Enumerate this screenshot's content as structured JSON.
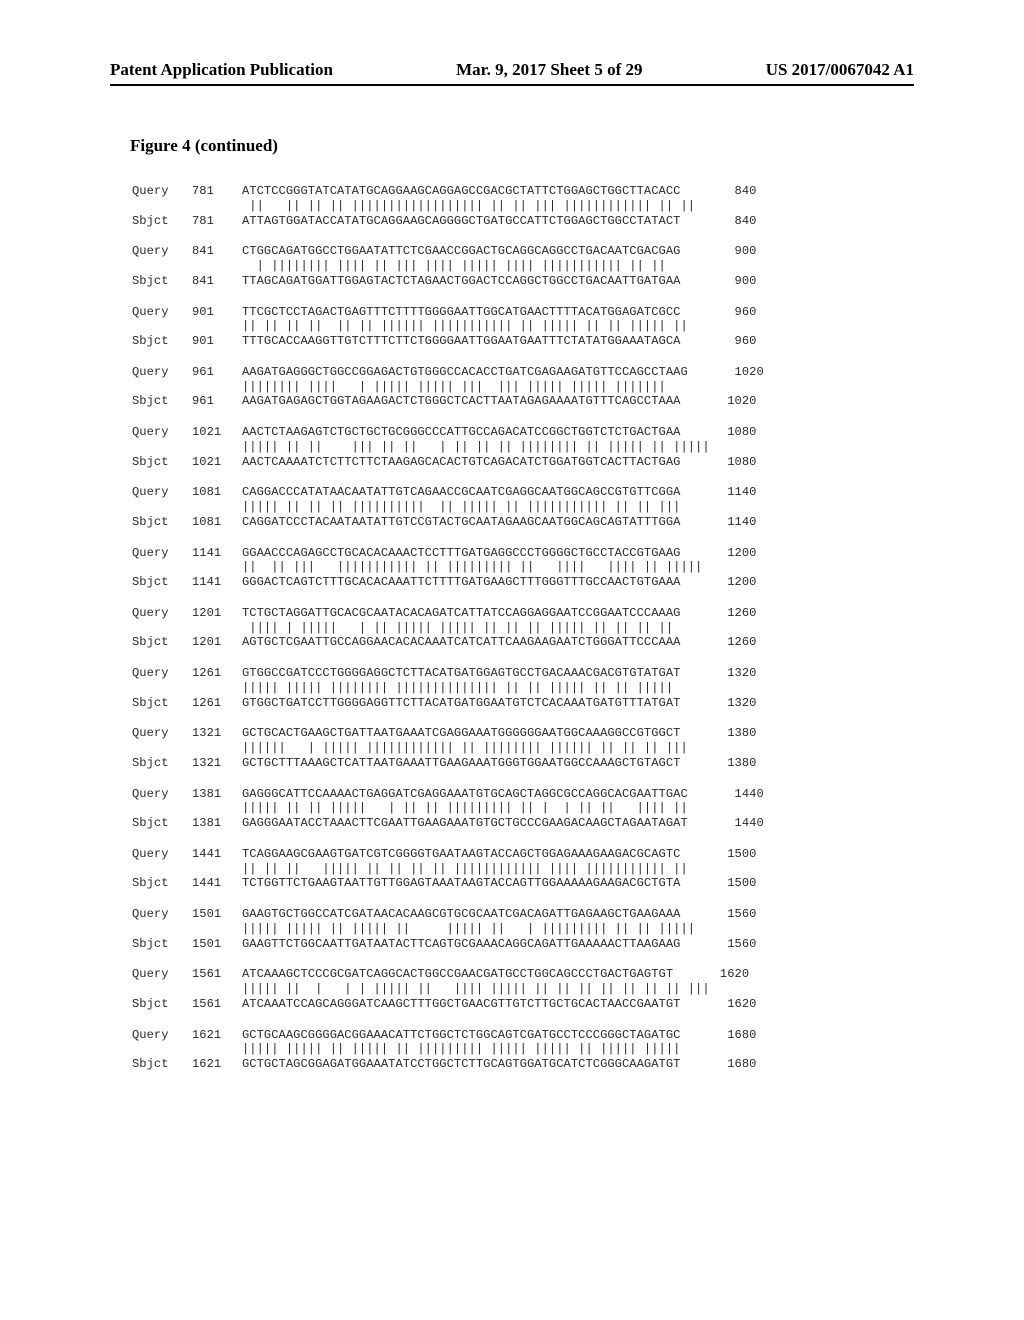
{
  "header": {
    "left": "Patent Application Publication",
    "center": "Mar. 9, 2017  Sheet 5 of 29",
    "right": "US 2017/0067042 A1"
  },
  "figure": {
    "title": "Figure 4 (continued)"
  },
  "alignment": {
    "font": "Courier New",
    "font_size_pt": 12,
    "seq_label_q": "Query",
    "seq_label_s": "Sbjct",
    "background_color": "#ffffff",
    "text_color": "#2a2a2a",
    "blocks": [
      {
        "start": 781,
        "end": 840,
        "query": "ATCTCCGGGTATCATATGCAGGAAGCAGGAGCCGACGCTATTCTGGAGCTGGCTTACACC",
        "match": " ||   || || || |||||||||||||||||| || || ||| |||||||||||| || ||",
        "sbjct": "ATTAGTGGATACCATATGCAGGAAGCAGGGGCTGATGCCATTCTGGAGCTGGCCTATACT"
      },
      {
        "start": 841,
        "end": 900,
        "query": "CTGGCAGATGGCCTGGAATATTCTCGAACCGGACTGCAGGCAGGCCTGACAATCGACGAG",
        "match": "  | |||||||| |||| || ||| |||| ||||| |||| ||||||||||| || ||   ",
        "sbjct": "TTAGCAGATGGATTGGAGTACTCTAGAACTGGACTCCAGGCTGGCCTGACAATTGATGAA"
      },
      {
        "start": 901,
        "end": 960,
        "query": "TTCGCTCCTAGACTGAGTTTCTTTTGGGGAATTGGCATGAACTTTTACATGGAGATCGCC",
        "match": "|| || || ||  || || |||||| ||||||||||| || ||||| || || ||||| ||  ",
        "sbjct": "TTTGCACCAAGGTTGTCTTTCTTCTGGGGAATTGGAATGAATTTCTATATGGAAATAGCA"
      },
      {
        "start": 961,
        "end": 1020,
        "query": "AAGATGAGGGCTGGCCGGAGACTGTGGGCCACACCTGATCGAGAAGATGTTCCAGCCTAAG",
        "match": "|||||||| ||||   | ||||| ||||| |||  ||| ||||| ||||| |||||||    ",
        "sbjct": "AAGATGAGAGCTGGTAGAAGACTCTGGGCTCACTTAATAGAGAAAATGTTTCAGCCTAAA"
      },
      {
        "start": 1021,
        "end": 1080,
        "query": "AACTCTAAGAGTCTGCTGCTGCGGGCCCATTGCCAGACATCCGGCTGGTCTCTGACTGAA",
        "match": "||||| || ||    ||| || ||   | || || || |||||||| || ||||| || |||||",
        "sbjct": "AACTCAAAATCTCTTCTTCTAAGAGCACACTGTCAGACATCTGGATGGTCACTTACTGAG"
      },
      {
        "start": 1081,
        "end": 1140,
        "query": "CAGGACCCATATAACAATATTGTCAGAACCGCAATCGAGGCAATGGCAGCCGTGTTCGGA",
        "match": "||||| || || || ||||||||||  || ||||| || ||||||||||| || || |||  ",
        "sbjct": "CAGGATCCCTACAATAATATTGTCCGTACTGCAATAGAAGCAATGGCAGCAGTATTTGGA"
      },
      {
        "start": 1141,
        "end": 1200,
        "query": "GGAACCCAGAGCCTGCACACAAACTCCTTTGATGAGGCCCTGGGGCTGCCTACCGTGAAG",
        "match": "||  || |||   ||||||||||| || ||||||||| ||   ||||   |||| || |||||",
        "sbjct": "GGGACTCAGTCTTTGCACACAAATTCTTTTGATGAAGCTTTGGGTTTGCCAACTGTGAAA"
      },
      {
        "start": 1201,
        "end": 1260,
        "query": "TCTGCTAGGATTGCACGCAATACACAGATCATTATCCAGGAGGAATCCGGAATCCCAAAG",
        "match": " |||| | |||||   | || ||||| ||||| || || || ||||| || || || ||  ",
        "sbjct": "AGTGCTCGAATTGCCAGGAACACACAAATCATCATTCAAGAAGAATCTGGGATTCCCAAA"
      },
      {
        "start": 1261,
        "end": 1320,
        "query": "GTGGCCGATCCCTGGGGAGGCTCTTACATGATGGAGTGCCTGACAAACGACGTGTATGAT",
        "match": "||||| ||||| |||||||| |||||||||||||| || || ||||| || || |||||  ",
        "sbjct": "GTGGCTGATCCTTGGGGAGGTTCTTACATGATGGAATGTCTCACAAATGATGTTTATGAT"
      },
      {
        "start": 1321,
        "end": 1380,
        "query": "GCTGCACTGAAGCTGATTAATGAAATCGAGGAAATGGGGGGAATGGCAAAGGCCGTGGCT",
        "match": "||||||   | ||||| |||||||||||| || |||||||| |||||| || || || |||",
        "sbjct": "GCTGCTTTAAAGCTCATTAATGAAATTGAAGAAATGGGTGGAATGGCCAAAGCTGTAGCT"
      },
      {
        "start": 1381,
        "end": 1440,
        "query": "GAGGGCATTCCAAAACTGAGGATCGAGGAAATGTGCAGCTAGGCGCCAGGCACGAATTGAC",
        "match": "||||| || || |||||   | || || ||||||||| || |  | || ||   |||| ||  ",
        "sbjct": "GAGGGAATACCTAAACTTCGAATTGAAGAAATGTGCTGCCCGAAGACAAGCTAGAATAGAT"
      },
      {
        "start": 1441,
        "end": 1500,
        "query": "TCAGGAAGCGAAGTGATCGTCGGGGTGAATAAGTACCAGCTGGAGAAAGAAGACGCAGTC",
        "match": "|| || ||   ||||| || || || || |||||||||||| |||| ||||||||||| ||  ",
        "sbjct": "TCTGGTTCTGAAGTAATTGTTGGAGTAAATAAGTACCAGTTGGAAAAAGAAGACGCTGTA"
      },
      {
        "start": 1501,
        "end": 1560,
        "query": "GAAGTGCTGGCCATCGATAACACAAGCGTGCGCAATCGACAGATTGAGAAGCTGAAGAAA",
        "match": "||||| ||||| || ||||| ||     ||||| ||   | ||||||||| || || |||||",
        "sbjct": "GAAGTTCTGGCAATTGATAATACTTCAGTGCGAAACAGGCAGATTGAAAAACTTAAGAAG"
      },
      {
        "start": 1561,
        "end": 1620,
        "query": "ATCAAAGCTCCCGCGATCAGGCACTGGCCGAACGATGCCTGGCAGCCCTGACTGAGTGT",
        "match": "||||| ||  |   | | ||||| ||   |||| ||||| || || || || || || || |||",
        "sbjct": "ATCAAATCCAGCAGGGATCAAGCTTTGGCTGAACGTTGTCTTGCTGCACTAACCGAATGT"
      },
      {
        "start": 1621,
        "end": 1680,
        "query": "GCTGCAAGCGGGGACGGAAACATTCTGGCTCTGGCAGTCGATGCCTCCCGGGCTAGATGC",
        "match": "||||| ||||| || ||||| || ||||||||| ||||| ||||| || ||||| ||||| ",
        "sbjct": "GCTGCTAGCGGAGATGGAAATATCCTGGCTCTTGCAGTGGATGCATCTCGGGCAAGATGT"
      }
    ]
  }
}
